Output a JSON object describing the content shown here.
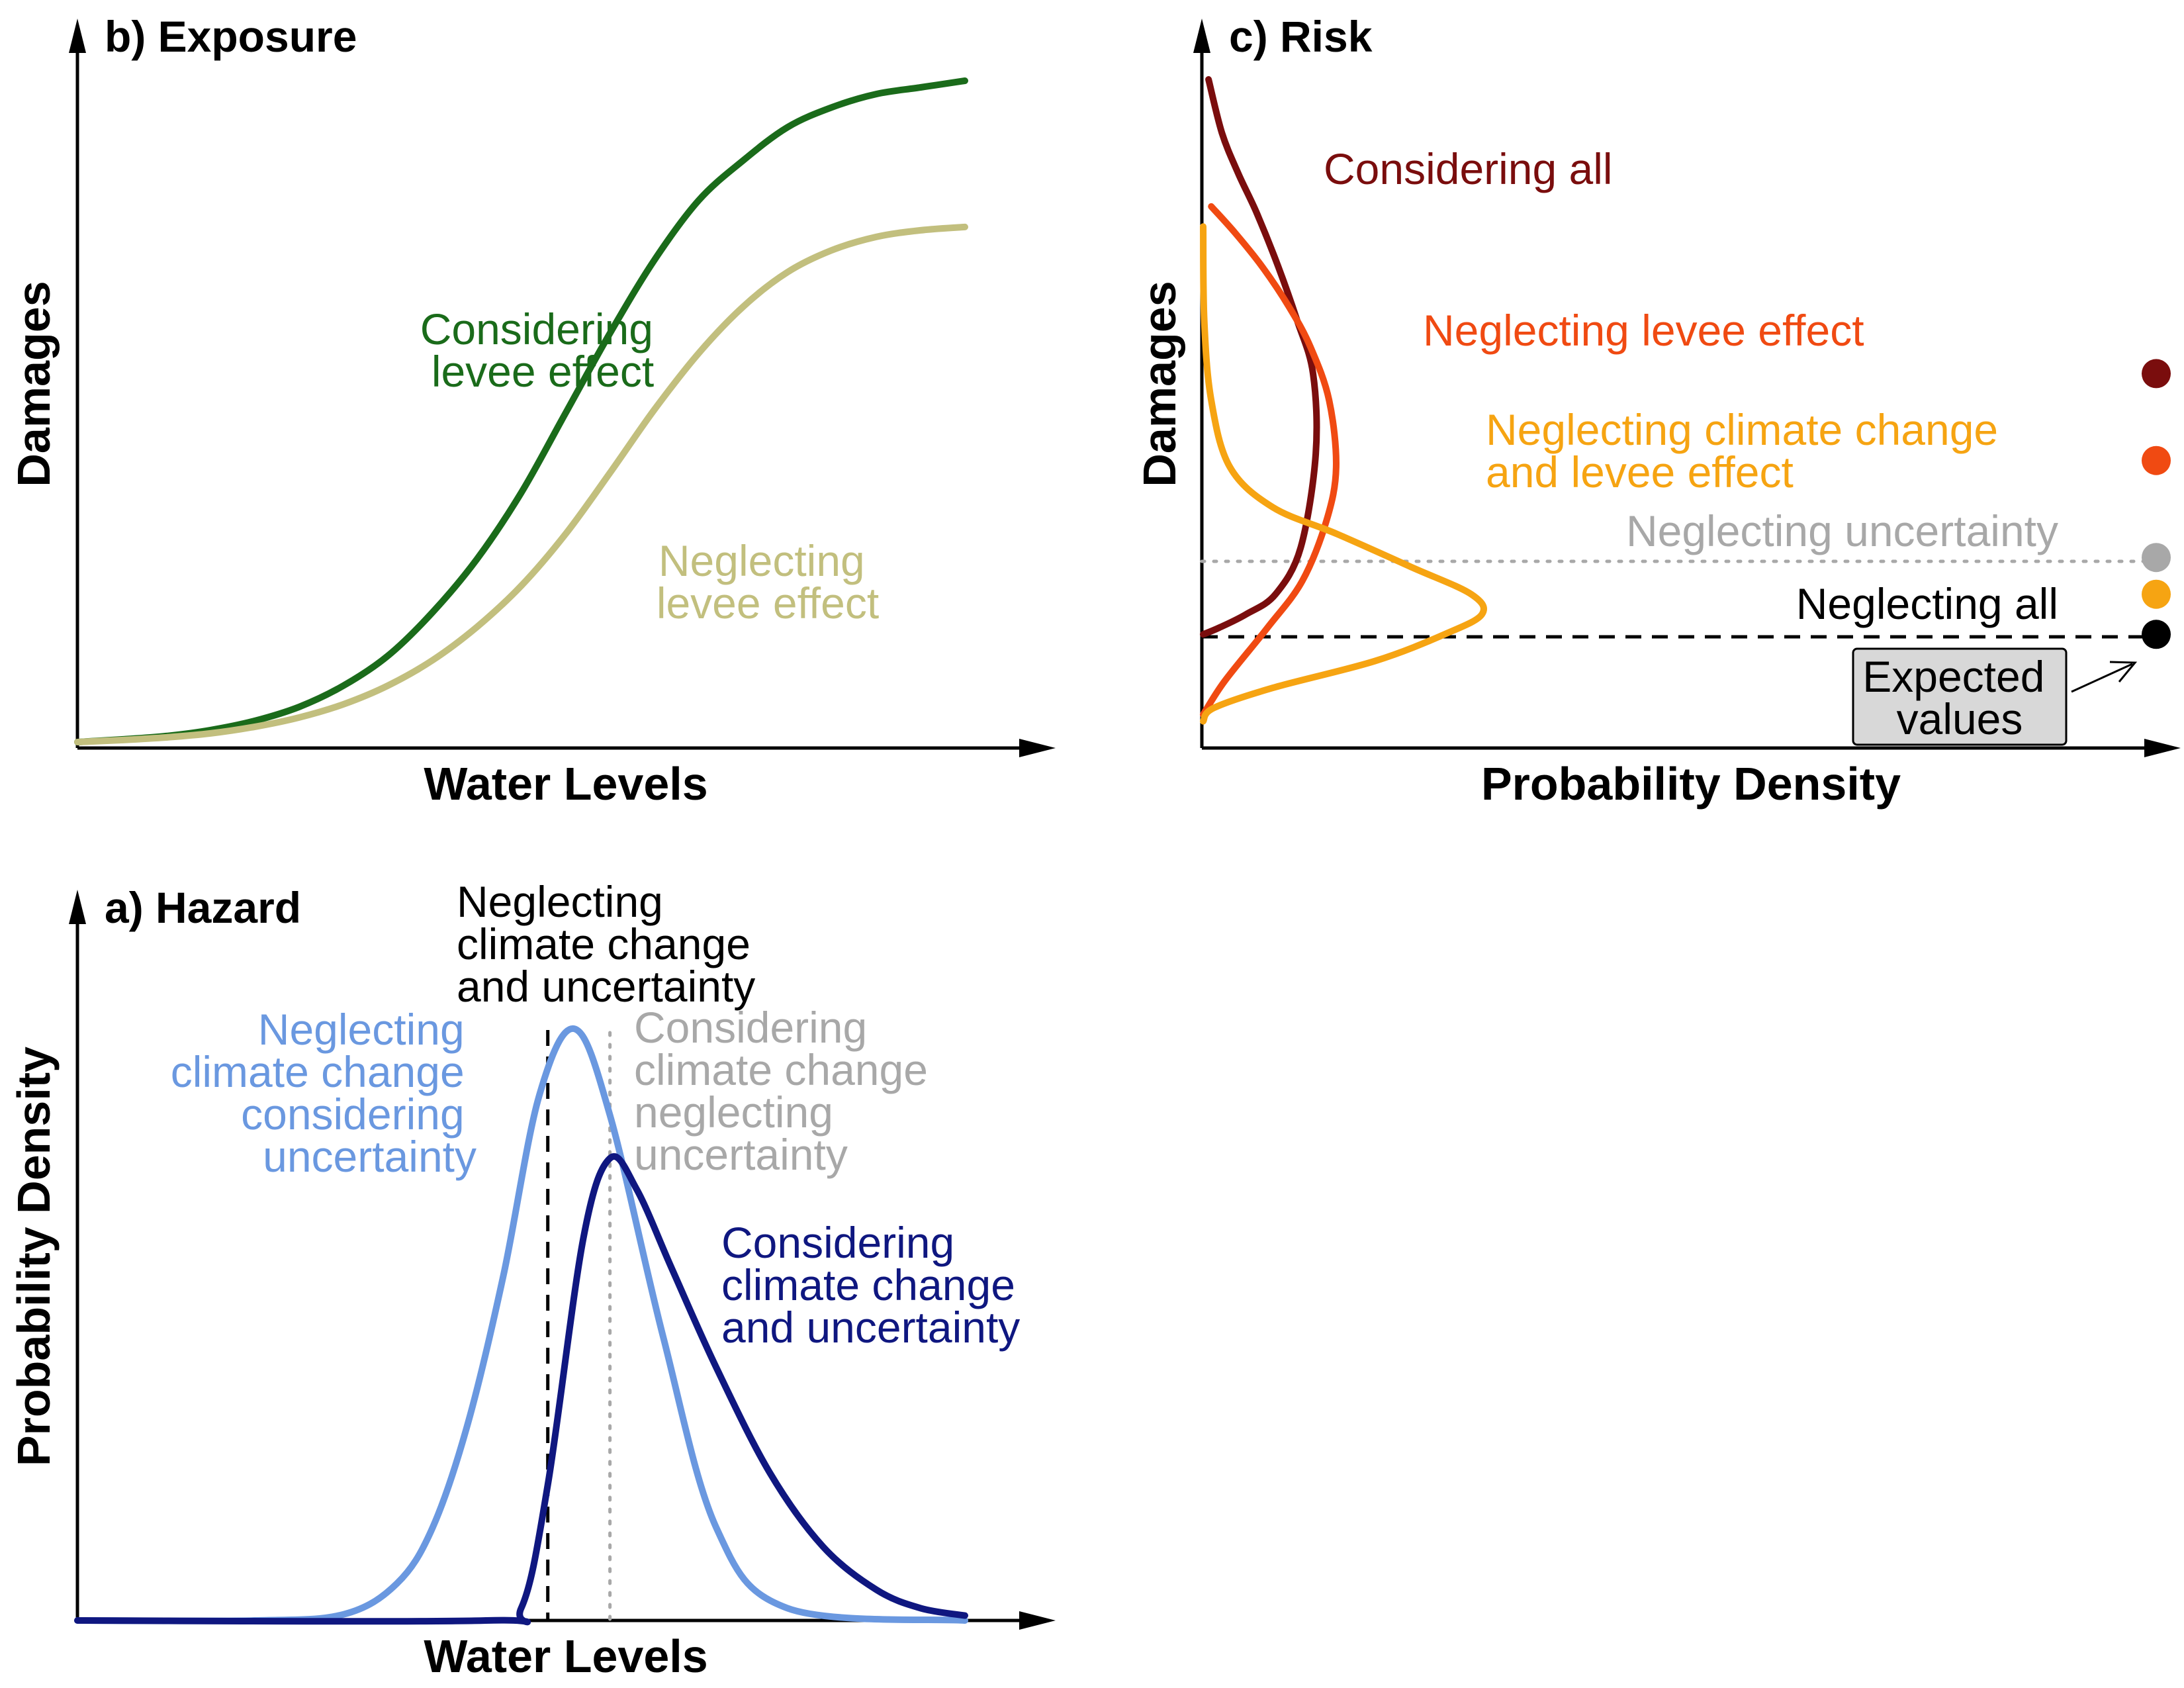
{
  "colors": {
    "green_dark": "#1a6b1a",
    "green_light": "#c2bf7e",
    "dark_red": "#7a0d0d",
    "red_orange": "#f04a12",
    "orange": "#f6a412",
    "gray": "#a8a8a8",
    "black": "#000000",
    "light_blue": "#6a98e0",
    "dark_blue": "#0f1780",
    "box_fill": "#d8d8d8"
  },
  "chart_data": [
    {
      "id": "exposure",
      "type": "line",
      "title": "b) Exposure",
      "xlabel": "Water Levels",
      "ylabel": "Damages",
      "xlim": [
        0,
        1
      ],
      "ylim": [
        0,
        1
      ],
      "grid": false,
      "series": [
        {
          "name": "Considering levee effect",
          "color_key": "green_dark",
          "x": [
            0.0,
            0.05,
            0.1,
            0.15,
            0.2,
            0.25,
            0.3,
            0.35,
            0.4,
            0.45,
            0.5,
            0.55,
            0.6,
            0.65,
            0.7,
            0.75,
            0.8,
            0.85,
            0.9,
            0.95,
            1.0
          ],
          "y": [
            0.005,
            0.009,
            0.014,
            0.023,
            0.037,
            0.058,
            0.09,
            0.135,
            0.2,
            0.28,
            0.38,
            0.5,
            0.62,
            0.73,
            0.82,
            0.88,
            0.93,
            0.96,
            0.98,
            0.99,
            1.0
          ]
        },
        {
          "name": "Neglecting levee effect",
          "color_key": "green_light",
          "x": [
            0.0,
            0.05,
            0.1,
            0.15,
            0.2,
            0.25,
            0.3,
            0.35,
            0.4,
            0.45,
            0.5,
            0.55,
            0.6,
            0.65,
            0.7,
            0.75,
            0.8,
            0.85,
            0.9,
            0.95,
            1.0
          ],
          "y": [
            0.005,
            0.008,
            0.012,
            0.018,
            0.028,
            0.042,
            0.062,
            0.09,
            0.128,
            0.178,
            0.24,
            0.318,
            0.41,
            0.505,
            0.59,
            0.66,
            0.712,
            0.745,
            0.765,
            0.775,
            0.78
          ]
        }
      ],
      "annotations": [
        {
          "lines": [
            "Considering",
            "levee effect"
          ],
          "color_key": "green_dark"
        },
        {
          "lines": [
            "Neglecting",
            "levee effect"
          ],
          "color_key": "green_light"
        }
      ]
    },
    {
      "id": "risk",
      "type": "line",
      "title": "c) Risk",
      "xlabel": "Probability Density",
      "ylabel": "Damages",
      "xlim": [
        0,
        1
      ],
      "ylim": [
        0,
        1
      ],
      "grid": false,
      "series": [
        {
          "name": "Considering all",
          "color_key": "dark_red",
          "density": [
            0.0,
            0.03,
            0.08,
            0.135,
            0.182,
            0.21,
            0.205,
            0.175,
            0.14,
            0.1,
            0.065,
            0.035,
            0.01
          ],
          "damage": [
            0.17,
            0.18,
            0.2,
            0.23,
            0.3,
            0.44,
            0.56,
            0.64,
            0.72,
            0.8,
            0.86,
            0.92,
            1.0
          ]
        },
        {
          "name": "Neglecting levee effect",
          "color_key": "red_orange",
          "density": [
            0.0,
            0.04,
            0.12,
            0.185,
            0.23,
            0.248,
            0.235,
            0.2,
            0.16,
            0.11,
            0.06,
            0.015
          ],
          "damage": [
            0.05,
            0.1,
            0.18,
            0.25,
            0.34,
            0.42,
            0.52,
            0.6,
            0.66,
            0.72,
            0.77,
            0.81
          ]
        },
        {
          "name": "Neglecting climate change and levee effect",
          "color_key": "orange",
          "density": [
            0.0,
            0.02,
            0.13,
            0.32,
            0.45,
            0.52,
            0.5,
            0.39,
            0.25,
            0.13,
            0.05,
            0.015,
            0.002,
            0.0
          ],
          "damage": [
            0.04,
            0.06,
            0.09,
            0.13,
            0.17,
            0.2,
            0.23,
            0.27,
            0.32,
            0.36,
            0.42,
            0.52,
            0.64,
            0.78
          ]
        }
      ],
      "reference_lines": [
        {
          "name": "Neglecting uncertainty",
          "damage": 0.285,
          "style": "dotted",
          "color_key": "gray"
        },
        {
          "name": "Neglecting all",
          "damage": 0.17,
          "style": "dashed",
          "color_key": "black"
        }
      ],
      "labels": {
        "considering_all": "Considering all",
        "neglecting_levee": "Neglecting levee effect",
        "neglecting_cc_levee": [
          "Neglecting climate change",
          "and levee effect"
        ],
        "neglecting_uncertainty": "Neglecting uncertainty",
        "neglecting_all": "Neglecting all"
      },
      "expected_values": {
        "label": [
          "Expected",
          "values"
        ],
        "points": [
          {
            "color_key": "dark_red",
            "damage": 0.56
          },
          {
            "color_key": "red_orange",
            "damage": 0.43
          },
          {
            "color_key": "gray",
            "damage": 0.285
          },
          {
            "color_key": "orange",
            "damage": 0.23
          },
          {
            "color_key": "black",
            "damage": 0.17
          }
        ]
      }
    },
    {
      "id": "hazard",
      "type": "line",
      "title": "a) Hazard",
      "xlabel": "Water Levels",
      "ylabel": "Probability Density",
      "xlim": [
        0,
        1
      ],
      "ylim": [
        0,
        1
      ],
      "grid": false,
      "series": [
        {
          "name": "Neglecting climate change considering uncertainty",
          "color_key": "light_blue",
          "x": [
            0.0,
            0.2,
            0.3,
            0.36,
            0.4,
            0.44,
            0.48,
            0.52,
            0.56,
            0.6,
            0.66,
            0.72,
            0.8,
            1.0
          ],
          "y": [
            0.0,
            0.0,
            0.01,
            0.06,
            0.15,
            0.32,
            0.56,
            0.85,
            0.96,
            0.82,
            0.46,
            0.15,
            0.02,
            0.0
          ]
        },
        {
          "name": "Considering climate change and uncertainty",
          "color_key": "dark_blue",
          "x": [
            0.0,
            0.46,
            0.5,
            0.53,
            0.57,
            0.6,
            0.63,
            0.67,
            0.72,
            0.78,
            0.84,
            0.9,
            0.95,
            1.0
          ],
          "y": [
            0.0,
            0.0,
            0.02,
            0.22,
            0.62,
            0.75,
            0.7,
            0.57,
            0.41,
            0.24,
            0.12,
            0.05,
            0.02,
            0.008
          ]
        }
      ],
      "reference_lines": [
        {
          "name": "Neglecting climate change and uncertainty",
          "x": 0.53,
          "style": "dashed",
          "color_key": "black"
        },
        {
          "name": "Considering climate change neglecting uncertainty",
          "x": 0.6,
          "style": "dotted",
          "color_key": "gray"
        }
      ],
      "annotations": {
        "neglecting_cc_unc": [
          "Neglecting",
          "climate change",
          "and uncertainty"
        ],
        "neglecting_cc_considering_unc": [
          "Neglecting",
          "climate change",
          "considering",
          "uncertainty"
        ],
        "considering_cc_neglecting_unc": [
          "Considering",
          "climate change",
          "neglecting",
          "uncertainty"
        ],
        "considering_cc_unc": [
          "Considering",
          "climate change",
          "and uncertainty"
        ]
      }
    }
  ]
}
